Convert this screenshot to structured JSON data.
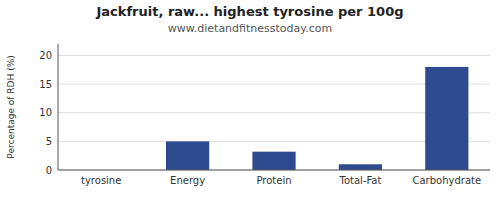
{
  "chart_data": {
    "type": "bar",
    "title": "Jackfruit, raw... highest tyrosine per 100g",
    "subtitle": "www.dietandfitnesstoday.com",
    "categories": [
      "tyrosine",
      "Energy",
      "Protein",
      "Total-Fat",
      "Carbohydrate"
    ],
    "values": [
      0.0,
      5.0,
      3.2,
      1.0,
      18.0
    ],
    "color": "#2e4b8f",
    "ylabel": "Percentage of RDH (%)",
    "ylim": [
      0,
      22
    ],
    "yticks": [
      0,
      5,
      10,
      15,
      20
    ],
    "grid": true
  }
}
